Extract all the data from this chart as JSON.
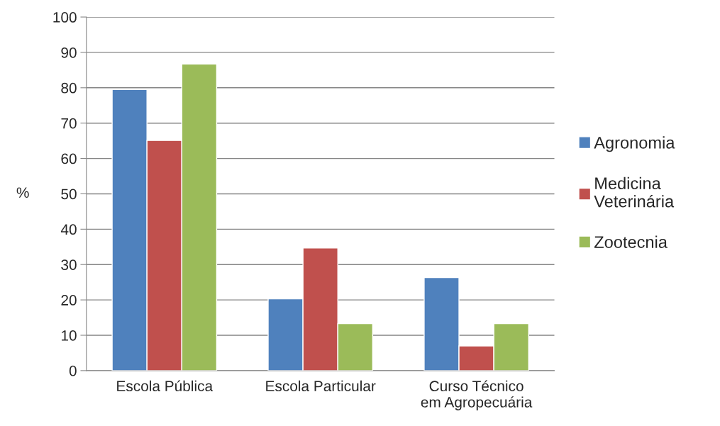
{
  "chart_data": {
    "type": "bar",
    "ylabel": "%",
    "categories": [
      "Escola Pública",
      "Escola Particular",
      "Curso Técnico\nem Agropecuária"
    ],
    "series": [
      {
        "name": "Agronomia",
        "color": "#4f81bd",
        "values": [
          79.5,
          20.3,
          26.3
        ]
      },
      {
        "name": "Medicina\nVeterinária",
        "color": "#c0504d",
        "values": [
          65.1,
          34.7,
          7.0
        ]
      },
      {
        "name": "Zootecnia",
        "color": "#9bbb59",
        "values": [
          86.7,
          13.3,
          13.3
        ]
      }
    ],
    "ylim": [
      0,
      100
    ],
    "yticks": [
      0,
      10,
      20,
      30,
      40,
      50,
      60,
      70,
      80,
      90,
      100
    ],
    "grid": "y",
    "legend": "right"
  }
}
